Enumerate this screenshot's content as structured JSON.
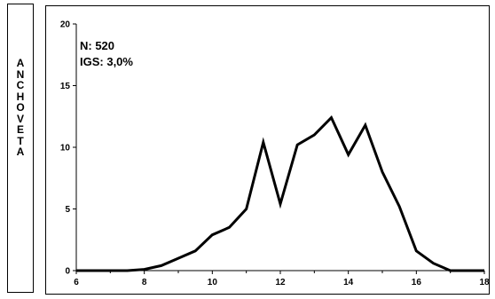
{
  "side_label": "ANCHOVETA",
  "annotations": [
    "N: 520",
    "IGS: 3,0%"
  ],
  "chart_data": {
    "type": "line",
    "title": "",
    "xlabel": "",
    "ylabel": "",
    "xlim": [
      6,
      18
    ],
    "ylim": [
      0,
      20
    ],
    "xticks": [
      6,
      8,
      10,
      12,
      14,
      16,
      18
    ],
    "yticks": [
      0,
      5,
      10,
      15,
      20
    ],
    "grid": false,
    "legend": "none",
    "line_color": "#000000",
    "series": [
      {
        "x": [
          6,
          6.5,
          7,
          7.5,
          8,
          8.5,
          9,
          9.5,
          10,
          10.5,
          11,
          11.5,
          12,
          12.5,
          13,
          13.5,
          14,
          14.5,
          15,
          15.5,
          16,
          16.5,
          17,
          17.5,
          18
        ],
        "values": [
          0,
          0,
          0,
          0,
          0.1,
          0.4,
          1.0,
          1.6,
          2.9,
          3.5,
          5.0,
          10.4,
          5.4,
          10.2,
          11.0,
          12.4,
          9.4,
          11.8,
          8.0,
          5.2,
          1.6,
          0.6,
          0,
          0,
          0
        ]
      }
    ]
  }
}
